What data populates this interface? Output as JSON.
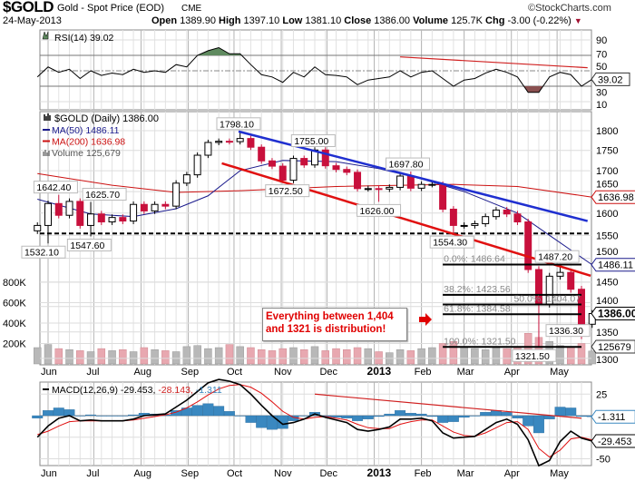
{
  "header": {
    "symbol": "$GOLD",
    "name": "Gold - Spot Price (EOD)",
    "exchange": "CME",
    "copyright": "©StockCharts.com",
    "date": "24-May-2013",
    "quote": [
      {
        "label": "Open",
        "value": "1389.90"
      },
      {
        "label": "High",
        "value": "1397.10"
      },
      {
        "label": "Low",
        "value": "1381.10"
      },
      {
        "label": "Close",
        "value": "1386.00"
      },
      {
        "label": "Volume",
        "value": "125.7K"
      },
      {
        "label": "Chg",
        "value": "-3.00 (-0.22%)"
      }
    ],
    "change_direction_icon": "triangle-down-icon"
  },
  "legend": {
    "rsi": "RSI(14) 39.02",
    "price": "$GOLD (Daily) 1386.00",
    "ma50": "MA(50) 1486.11",
    "ma200": "MA(200) 1636.98",
    "volume": "Volume 125,679",
    "macd_label": "MACD(12,26,9)",
    "macd_value": "-29.453",
    "signal_value": "-28.143",
    "hist_value": "-1.311"
  },
  "annotation": {
    "line1": "Everything between 1,404",
    "line2": "and 1321 is distribution!",
    "arrow_icon": "right-arrow-icon"
  },
  "colors": {
    "up": "#000000",
    "down": "#c8103c",
    "ma50": "#1a1a8c",
    "ma200": "#cc1111",
    "blue_trend": "#1f2fd0",
    "red_trend": "#e01010",
    "rsi_overbought": "#5f8a5f",
    "rsi_oversold": "#8a5050",
    "macd_hist": "#3a88c0",
    "signal": "#e01010",
    "vol_up": "#b8b8b8",
    "vol_down": "#e8a8b0"
  },
  "chart_data": {
    "type": "line",
    "x": [
      "2012-05-25",
      "2012-06-01",
      "2012-06-08",
      "2012-06-15",
      "2012-06-22",
      "2012-06-29",
      "2012-07-06",
      "2012-07-13",
      "2012-07-20",
      "2012-07-27",
      "2012-08-03",
      "2012-08-10",
      "2012-08-17",
      "2012-08-24",
      "2012-08-31",
      "2012-09-07",
      "2012-09-14",
      "2012-09-21",
      "2012-09-28",
      "2012-10-05",
      "2012-10-12",
      "2012-10-19",
      "2012-10-26",
      "2012-11-02",
      "2012-11-09",
      "2012-11-16",
      "2012-11-23",
      "2012-11-30",
      "2012-12-07",
      "2012-12-14",
      "2012-12-21",
      "2012-12-28",
      "2013-01-04",
      "2013-01-11",
      "2013-01-18",
      "2013-01-25",
      "2013-02-01",
      "2013-02-08",
      "2013-02-15",
      "2013-02-22",
      "2013-03-01",
      "2013-03-08",
      "2013-03-15",
      "2013-03-22",
      "2013-03-29",
      "2013-04-05",
      "2013-04-12",
      "2013-04-19",
      "2013-04-26",
      "2013-05-03",
      "2013-05-10",
      "2013-05-17",
      "2013-05-24"
    ],
    "x_tick_labels": [
      "Jun",
      "Jul",
      "Aug",
      "Sep",
      "Oct",
      "Nov",
      "Dec",
      "2013",
      "Feb",
      "Mar",
      "Apr",
      "May"
    ],
    "panels": [
      {
        "id": "rsi",
        "type": "line",
        "ylim": [
          0,
          100
        ],
        "yticks": [
          10,
          30,
          50,
          70,
          90
        ],
        "levels": {
          "overbought": 70,
          "midline": 50,
          "oversold": 30
        },
        "last_value_tag": "39.02",
        "values": [
          42,
          55,
          48,
          52,
          40,
          50,
          44,
          47,
          45,
          52,
          48,
          50,
          48,
          58,
          55,
          70,
          76,
          80,
          72,
          72,
          58,
          45,
          42,
          35,
          48,
          42,
          55,
          45,
          44,
          42,
          32,
          38,
          40,
          42,
          50,
          42,
          48,
          50,
          40,
          30,
          38,
          40,
          47,
          52,
          48,
          42,
          22,
          22,
          42,
          48,
          45,
          30,
          39.02
        ],
        "trendline": {
          "from": [
            "2013-01-18",
            68
          ],
          "to": [
            "2013-05-21",
            54
          ]
        }
      },
      {
        "id": "price",
        "type": "line",
        "mark": "candlestick",
        "scale": "log",
        "ylim": [
          1290,
          1830
        ],
        "yticks": [
          1300,
          1350,
          1400,
          1450,
          1500,
          1550,
          1600,
          1650,
          1700,
          1750,
          1800
        ],
        "close": [
          1572,
          1622,
          1595,
          1627,
          1572,
          1598,
          1580,
          1590,
          1582,
          1620,
          1605,
          1620,
          1616,
          1670,
          1690,
          1738,
          1770,
          1773,
          1772,
          1780,
          1758,
          1724,
          1711,
          1677,
          1730,
          1714,
          1751,
          1712,
          1703,
          1696,
          1657,
          1657,
          1656,
          1660,
          1687,
          1658,
          1667,
          1667,
          1609,
          1572,
          1572,
          1576,
          1592,
          1607,
          1598,
          1580,
          1476,
          1405,
          1462,
          1470,
          1435,
          1365,
          1386
        ],
        "ma50": [
          [
            "2012-05-25",
            1632
          ],
          [
            "2012-06-29",
            1598
          ],
          [
            "2012-07-27",
            1592
          ],
          [
            "2012-08-24",
            1610
          ],
          [
            "2012-09-14",
            1640
          ],
          [
            "2012-10-05",
            1700
          ],
          [
            "2012-11-02",
            1725
          ],
          [
            "2012-12-07",
            1722
          ],
          [
            "2013-01-04",
            1705
          ],
          [
            "2013-02-01",
            1680
          ],
          [
            "2013-03-01",
            1650
          ],
          [
            "2013-04-05",
            1600
          ],
          [
            "2013-04-26",
            1550
          ],
          [
            "2013-05-24",
            1486.11
          ]
        ],
        "ma200": [
          [
            "2012-05-25",
            1693
          ],
          [
            "2012-07-13",
            1665
          ],
          [
            "2012-08-24",
            1648
          ],
          [
            "2012-10-05",
            1652
          ],
          [
            "2012-12-07",
            1662
          ],
          [
            "2013-02-22",
            1667
          ],
          [
            "2013-04-05",
            1662
          ],
          [
            "2013-05-24",
            1636.98
          ]
        ],
        "last_tags": {
          "ma200": "1636.98",
          "ma50": "1486.11",
          "close": "1386.00"
        },
        "extremes": [
          {
            "date": "2012-05-29",
            "price": 1532.1,
            "label": "1532.10",
            "kind": "low"
          },
          {
            "date": "2012-06-06",
            "price": 1642.4,
            "label": "1642.40",
            "kind": "high"
          },
          {
            "date": "2012-06-28",
            "price": 1547.6,
            "label": "1547.60",
            "kind": "low"
          },
          {
            "date": "2012-07-02",
            "price": 1625.7,
            "label": "1625.70",
            "kind": "high"
          },
          {
            "date": "2012-10-04",
            "price": 1798.1,
            "label": "1798.10",
            "kind": "high"
          },
          {
            "date": "2012-11-05",
            "price": 1672.5,
            "label": "1672.50",
            "kind": "low"
          },
          {
            "date": "2012-11-22",
            "price": 1755.0,
            "label": "1755.00",
            "kind": "high"
          },
          {
            "date": "2013-01-04",
            "price": 1626.0,
            "label": "1626.00",
            "kind": "low"
          },
          {
            "date": "2013-01-23",
            "price": 1697.8,
            "label": "1697.80",
            "kind": "high"
          },
          {
            "date": "2013-02-21",
            "price": 1554.3,
            "label": "1554.30",
            "kind": "low"
          },
          {
            "date": "2013-04-16",
            "price": 1321.5,
            "label": "1321.50",
            "kind": "low"
          },
          {
            "date": "2013-05-01",
            "price": 1487.2,
            "label": "1487.20",
            "kind": "high"
          },
          {
            "date": "2013-05-16",
            "price": 1336.3,
            "label": "1336.30",
            "kind": "low"
          }
        ],
        "trendlines": [
          {
            "name": "blue-resistance",
            "color": "#1f2fd0",
            "from": [
              "2012-10-04",
              1798
            ],
            "to": [
              "2013-05-21",
              1582
            ]
          },
          {
            "name": "red-support",
            "color": "#e01010",
            "from": [
              "2012-09-23",
              1718
            ],
            "to": [
              "2013-05-23",
              1463
            ]
          }
        ],
        "horizontal_support": 1554,
        "fibonacci": {
          "from": "2013-02-15",
          "to": "2013-05-17",
          "levels": [
            {
              "label": "0.0%: 1486.64",
              "price": 1486.64
            },
            {
              "label": "38.2%: 1423.56",
              "price": 1423.56
            },
            {
              "label": "50.0%: 1404.07",
              "price": 1404.07
            },
            {
              "label": "61.8%: 1384.58",
              "price": 1384.58
            },
            {
              "label": "100.0%: 1321.50",
              "price": 1321.5
            }
          ]
        }
      },
      {
        "id": "volume",
        "type": "bar",
        "unit": "K",
        "yticks": [
          200,
          400,
          600,
          800
        ],
        "ytick_labels": [
          "200K",
          "400K",
          "600K",
          "800K"
        ],
        "last_value_tag": "125679",
        "values": [
          160,
          190,
          150,
          140,
          130,
          120,
          150,
          130,
          140,
          120,
          160,
          140,
          130,
          120,
          170,
          180,
          150,
          160,
          190,
          170,
          160,
          140,
          130,
          150,
          160,
          140,
          170,
          130,
          150,
          140,
          160,
          150,
          120,
          110,
          140,
          130,
          150,
          160,
          200,
          220,
          170,
          150,
          140,
          160,
          150,
          170,
          300,
          260,
          220,
          180,
          170,
          200,
          126
        ]
      },
      {
        "id": "macd",
        "type": "line",
        "yticks": [
          25,
          -50
        ],
        "macd": [
          -25,
          -12,
          -3,
          0,
          -6,
          -5,
          -6,
          -6,
          -6,
          -4,
          0,
          1,
          2,
          10,
          18,
          28,
          38,
          42,
          40,
          36,
          25,
          12,
          0,
          -10,
          -8,
          -4,
          2,
          -2,
          -5,
          -8,
          -16,
          -18,
          -16,
          -13,
          -4,
          -4,
          -3,
          -6,
          -20,
          -26,
          -25,
          -24,
          -16,
          -8,
          -4,
          -10,
          -28,
          -58,
          -52,
          -30,
          -18,
          -26,
          -29.453
        ],
        "signal": [
          -22,
          -18,
          -12,
          -7,
          -6,
          -6,
          -6,
          -6,
          -6,
          -5,
          -3,
          -1,
          1,
          4,
          9,
          16,
          24,
          31,
          35,
          36,
          33,
          26,
          16,
          5,
          -2,
          -4,
          -2,
          -1,
          -3,
          -5,
          -10,
          -14,
          -15,
          -15,
          -10,
          -7,
          -5,
          -5,
          -12,
          -19,
          -23,
          -24,
          -20,
          -14,
          -8,
          -7,
          -16,
          -38,
          -48,
          -40,
          -27,
          -25,
          -28.143
        ],
        "last_tags": {
          "hist": "-1.311",
          "macd": "-29.453"
        },
        "trendline": {
          "from": [
            "2012-11-23",
            25
          ],
          "to": [
            "2013-05-17",
            -3
          ]
        }
      }
    ]
  }
}
